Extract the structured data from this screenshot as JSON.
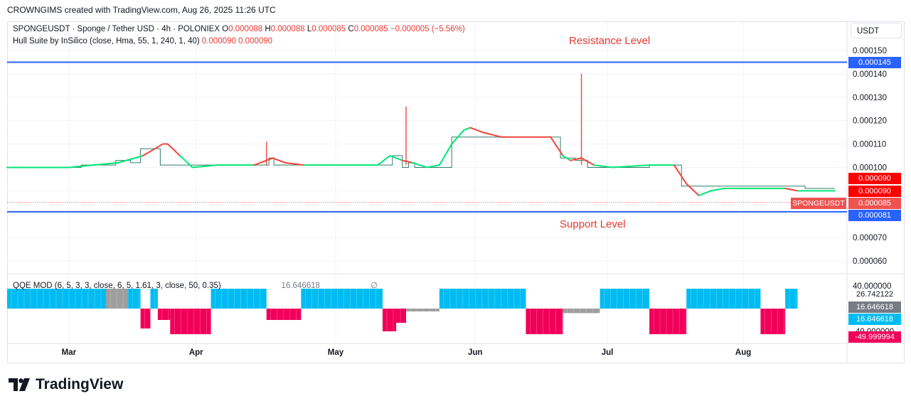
{
  "header": {
    "credit": "CROWNGIMS created with TradingView.com, Aug 26, 2025 11:26 UTC"
  },
  "main_legend": {
    "symbol_line": "SPONGEUSDT · Sponge / Tether USD · 4h · POLONIEX",
    "o_label": "O",
    "o_value": "0.000088",
    "h_label": "H",
    "h_value": "0.000088",
    "l_label": "L",
    "l_value": "0.000085",
    "c_label": "C",
    "c_value": "0.000085",
    "change": "−0.000005 (−5.56%)",
    "indicator": "Hull Suite by InSilico (close, Hma, 55, 1, 240, 1, 40)",
    "ind_v1": "0.000090",
    "ind_v2": "0.000090"
  },
  "annotations": {
    "resistance": "Resistance Level",
    "support": "Support Level"
  },
  "currency": "USDT",
  "price_axis": {
    "ticks": [
      "0.000150",
      "0.000140",
      "0.000130",
      "0.000120",
      "0.000110",
      "0.000100",
      "0.000070",
      "0.000060"
    ],
    "resistance_tag": "0.000145",
    "hull_tag_1": "0.000090",
    "hull_tag_2": "0.000090",
    "symbol_tag": "SPONGEUSDT",
    "last_price_tag": "0.000085",
    "support_tag": "0.000081"
  },
  "qqe": {
    "label": "QQE MOD (6, 5, 3, 3, close, 6, 5, 1.61, 3, close, 50, 0.35)",
    "val1": "26.742122",
    "val2": "16.646618",
    "val3": "∅",
    "axis_ticks": [
      "40.000000",
      "-40.000000"
    ],
    "tag1": "26.742122",
    "tag2": "16.646618",
    "tag3": "16.646618",
    "tag4": "-49.999994"
  },
  "time_axis": [
    "Mar",
    "Apr",
    "May",
    "Jun",
    "Jul",
    "Aug"
  ],
  "logo_text": "TradingView",
  "colors": {
    "level_line": "#2962ff",
    "hull_up": "#00e676",
    "hull_down": "#f44336",
    "price_line": "#2e7d6b",
    "qqe_blue": "#00bcf2",
    "qqe_pink": "#f0005a",
    "qqe_gray": "#9e9e9e"
  },
  "chart_data": {
    "type": "line",
    "timeframe": "4h",
    "x_axis_labels": [
      "Mar",
      "Apr",
      "May",
      "Jun",
      "Jul",
      "Aug"
    ],
    "ylim": [
      5.5e-05,
      0.000155
    ],
    "horizontal_levels": [
      {
        "name": "Resistance Level",
        "value": 0.000145
      },
      {
        "name": "Support Level",
        "value": 8.1e-05
      }
    ],
    "price_steps": [
      [
        0.0,
        0.0001
      ],
      [
        6.0,
        0.000101
      ],
      [
        8.8,
        0.000103
      ],
      [
        10.0,
        0.000102
      ],
      [
        10.8,
        0.000108
      ],
      [
        12.4,
        0.000101
      ],
      [
        20.8,
        0.000101
      ],
      [
        21.2,
        0.000104
      ],
      [
        21.6,
        0.000101
      ],
      [
        30.5,
        0.000101
      ],
      [
        31.2,
        0.000105
      ],
      [
        32.0,
        0.0001
      ],
      [
        32.5,
        0.000102
      ],
      [
        33.0,
        0.0001
      ],
      [
        35.0,
        0.0001
      ],
      [
        36.0,
        0.000113
      ],
      [
        44.0,
        0.000113
      ],
      [
        44.8,
        0.000104
      ],
      [
        46.0,
        0.000103
      ],
      [
        47.0,
        0.0001
      ],
      [
        51.0,
        0.0001
      ],
      [
        52.0,
        0.000101
      ],
      [
        54.0,
        0.000101
      ],
      [
        54.6,
        9.2e-05
      ],
      [
        63.0,
        9.2e-05
      ],
      [
        64.6,
        9.1e-05
      ],
      [
        67.0,
        9.1e-05
      ]
    ],
    "price_spikes": [
      {
        "x": 21.0,
        "high": 0.000111
      },
      {
        "x": 32.3,
        "high": 0.000126
      },
      {
        "x": 46.5,
        "high": 0.00014
      }
    ],
    "series": [
      {
        "name": "Hull Suite",
        "points": [
          [
            0.0,
            0.0001
          ],
          [
            5.0,
            0.0001
          ],
          [
            7.0,
            0.000101
          ],
          [
            9.0,
            0.000102
          ],
          [
            11.0,
            0.000105
          ],
          [
            12.6,
            0.00011
          ],
          [
            13.0,
            0.00011
          ],
          [
            14.0,
            0.000105
          ],
          [
            15.0,
            0.0001
          ],
          [
            17.0,
            0.000101
          ],
          [
            20.0,
            0.000101
          ],
          [
            21.5,
            0.000104
          ],
          [
            22.5,
            0.000102
          ],
          [
            24.0,
            0.000101
          ],
          [
            30.0,
            0.000101
          ],
          [
            31.0,
            0.000105
          ],
          [
            32.0,
            0.000103
          ],
          [
            32.8,
            0.000102
          ],
          [
            34.0,
            0.0001
          ],
          [
            35.0,
            0.000101
          ],
          [
            36.0,
            0.00011
          ],
          [
            37.0,
            0.000116
          ],
          [
            37.5,
            0.000117
          ],
          [
            38.5,
            0.000115
          ],
          [
            40.0,
            0.000113
          ],
          [
            44.0,
            0.000113
          ],
          [
            44.5,
            0.000109
          ],
          [
            45.0,
            0.000105
          ],
          [
            45.6,
            0.000103
          ],
          [
            46.5,
            0.000104
          ],
          [
            47.5,
            0.000101
          ],
          [
            49.0,
            0.0001
          ],
          [
            52.0,
            0.000101
          ],
          [
            54.0,
            0.000101
          ],
          [
            55.0,
            9.3e-05
          ],
          [
            56.0,
            8.8e-05
          ],
          [
            57.0,
            9e-05
          ],
          [
            58.0,
            9.1e-05
          ],
          [
            63.0,
            9.1e-05
          ],
          [
            64.0,
            9e-05
          ],
          [
            67.0,
            9e-05
          ]
        ],
        "segment_colors": [
          "green",
          "green",
          "green",
          "green",
          "green",
          "red",
          "red",
          "red",
          "green",
          "green",
          "green",
          "red",
          "red",
          "red",
          "green",
          "green",
          "green",
          "red",
          "green",
          "green",
          "green",
          "green",
          "green",
          "red",
          "red",
          "red",
          "red",
          "red",
          "green",
          "red",
          "red",
          "green",
          "green",
          "green",
          "red",
          "red",
          "green",
          "green",
          "green",
          "red",
          "green"
        ]
      }
    ],
    "qqe_mod": {
      "ylim": [
        -60,
        50
      ],
      "bars": [
        [
          0.0,
          8.0,
          35,
          "blue"
        ],
        [
          8.0,
          9.8,
          35,
          "gray"
        ],
        [
          9.8,
          10.8,
          35,
          "blue"
        ],
        [
          10.8,
          11.6,
          -35,
          "pink"
        ],
        [
          11.6,
          12.2,
          35,
          "blue"
        ],
        [
          12.2,
          13.2,
          -20,
          "pink"
        ],
        [
          13.2,
          16.5,
          -45,
          "pink"
        ],
        [
          16.5,
          21.0,
          35,
          "blue"
        ],
        [
          21.0,
          23.8,
          -20,
          "pink"
        ],
        [
          23.8,
          30.4,
          35,
          "blue"
        ],
        [
          30.4,
          31.5,
          -40,
          "pink"
        ],
        [
          31.5,
          32.3,
          -25,
          "pink"
        ],
        [
          32.3,
          35.0,
          -5,
          "gray"
        ],
        [
          35.0,
          42.0,
          35,
          "blue"
        ],
        [
          42.0,
          45.0,
          -45,
          "pink"
        ],
        [
          45.0,
          48.0,
          -8,
          "gray"
        ],
        [
          48.0,
          52.0,
          35,
          "blue"
        ],
        [
          52.0,
          55.0,
          -45,
          "pink"
        ],
        [
          55.0,
          61.0,
          35,
          "blue"
        ],
        [
          61.0,
          63.0,
          -45,
          "pink"
        ],
        [
          63.0,
          64.0,
          35,
          "blue"
        ]
      ]
    }
  }
}
